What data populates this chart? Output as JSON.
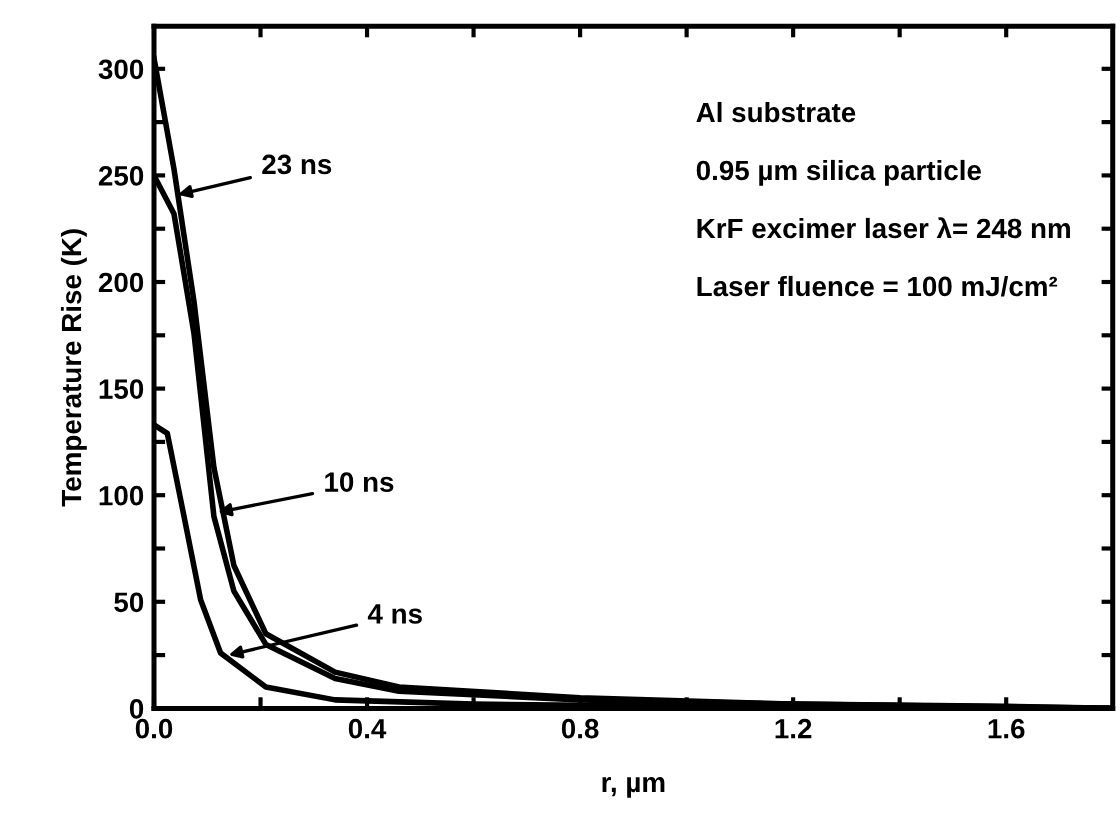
{
  "chart_data": {
    "type": "line",
    "xlabel": "r, µm",
    "ylabel": "Temperature Rise (K)",
    "xlim": [
      0,
      1.8
    ],
    "ylim": [
      0,
      320
    ],
    "xticks": [
      {
        "value": 0,
        "label": "0.0"
      },
      {
        "value": 0.2,
        "label": null
      },
      {
        "value": 0.4,
        "label": "0.4"
      },
      {
        "value": 0.6,
        "label": null
      },
      {
        "value": 0.8,
        "label": "0.8"
      },
      {
        "value": 1.0,
        "label": null
      },
      {
        "value": 1.2,
        "label": "1.2"
      },
      {
        "value": 1.4,
        "label": null
      },
      {
        "value": 1.6,
        "label": "1.6"
      }
    ],
    "yticks": [
      0,
      {
        "value": 25,
        "label": null
      },
      50,
      {
        "value": 75,
        "label": null
      },
      100,
      {
        "value": 125,
        "label": null
      },
      150,
      {
        "value": 175,
        "label": null
      },
      200,
      {
        "value": 225,
        "label": null
      },
      250,
      {
        "value": 275,
        "label": null
      },
      300
    ],
    "grid": false,
    "legend": false,
    "marker": "none",
    "line_style": "solid",
    "series": [
      {
        "color": "#000000",
        "x": [
          0,
          0.0375,
          0.075,
          0.1125,
          0.15,
          0.21,
          0.34,
          0.46,
          0.8,
          1.2,
          1.6,
          1.8
        ],
        "values": [
          305,
          253,
          191,
          113,
          67,
          35,
          17,
          10,
          5,
          2,
          1,
          0
        ]
      },
      {
        "color": "#000000",
        "x": [
          0,
          0.0375,
          0.075,
          0.1125,
          0.15,
          0.21,
          0.34,
          0.46,
          0.8,
          1.2,
          1.8
        ],
        "values": [
          250,
          232,
          176,
          90,
          55,
          30,
          14,
          8,
          4,
          2,
          0
        ]
      },
      {
        "color": "#000000",
        "x": [
          0,
          0.025,
          0.05,
          0.0875,
          0.125,
          0.21,
          0.34,
          0.6,
          1.0,
          1.8
        ],
        "values": [
          133,
          129,
          98,
          51,
          26,
          10,
          4,
          2,
          1,
          0
        ]
      }
    ],
    "annotations": [
      {
        "text": "23 ns",
        "x": 0.045,
        "y": 241
      },
      {
        "text": "10 ns",
        "x": 0.12,
        "y": 92
      },
      {
        "text": "4 ns",
        "x": 0.14,
        "y": 25
      },
      "Al substrate",
      "0.95 µm silica particle",
      "KrF excimer laser λ= 248 nm",
      "Laser fluence = 100 mJ/cm²"
    ]
  }
}
